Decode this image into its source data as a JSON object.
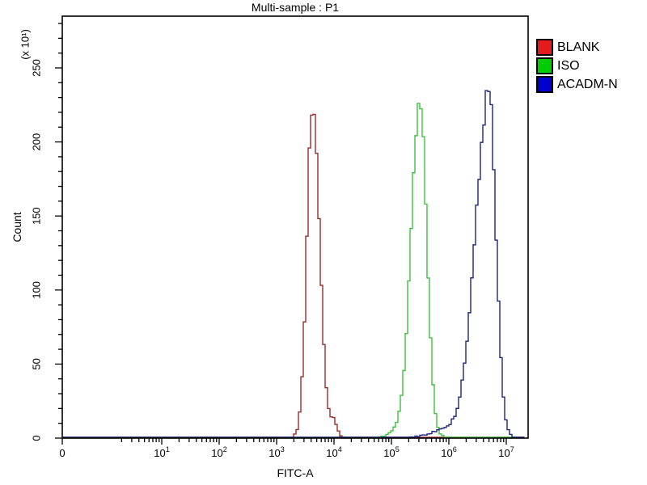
{
  "chart_data": {
    "type": "line",
    "subtype": "flow-cytometry-histogram-overlay",
    "title": "Multi-sample : P1",
    "xlabel": "FITC-A",
    "ylabel": "Count",
    "y_unit_multiplier": "(x 10¹)",
    "x_scale": "biexponential-log",
    "x_ticks": [
      {
        "label": "0",
        "type": "plain",
        "value": 0
      },
      {
        "base": "10",
        "exp": "1",
        "type": "power",
        "value": 10
      },
      {
        "base": "10",
        "exp": "2",
        "type": "power",
        "value": 100
      },
      {
        "base": "10",
        "exp": "3",
        "type": "power",
        "value": 1000
      },
      {
        "base": "10",
        "exp": "4",
        "type": "power",
        "value": 10000
      },
      {
        "base": "10",
        "exp": "5",
        "type": "power",
        "value": 100000
      },
      {
        "base": "10",
        "exp": "6",
        "type": "power",
        "value": 1000000
      },
      {
        "base": "10",
        "exp": "7",
        "type": "power",
        "value": 10000000
      }
    ],
    "y_major_ticks": [
      0,
      50,
      100,
      150,
      200,
      250
    ],
    "y_minor_step": 10,
    "ylim": [
      0,
      285
    ],
    "grid": false,
    "legend_position": "outside-top-right",
    "series": [
      {
        "name": "BLANK",
        "curve_color": "#9b2c2c",
        "legend_color": "#e51a1a",
        "peak_x_value": 4100,
        "peak_log10": 3.61,
        "peak_count": 228,
        "sigma_left_decades": 0.1,
        "sigma_right_decades": 0.12,
        "bumps": [
          {
            "log10": 3.97,
            "height": 10,
            "sigma": 0.06
          }
        ],
        "profile_points_log10_count": [
          [
            3.2,
            0
          ],
          [
            3.35,
            8
          ],
          [
            3.45,
            55
          ],
          [
            3.55,
            170
          ],
          [
            3.61,
            228
          ],
          [
            3.7,
            140
          ],
          [
            3.8,
            40
          ],
          [
            3.95,
            12
          ],
          [
            4.1,
            2
          ],
          [
            4.3,
            0
          ]
        ]
      },
      {
        "name": "ISO",
        "curve_color": "#3dc23d",
        "legend_color": "#00cc00",
        "peak_x_value": 300000,
        "peak_log10": 5.48,
        "peak_count": 230,
        "sigma_left_decades": 0.155,
        "sigma_right_decades": 0.115,
        "bumps": [
          {
            "log10": 5.1,
            "height": 4,
            "sigma": 0.15
          }
        ],
        "profile_points_log10_count": [
          [
            4.9,
            0
          ],
          [
            5.1,
            8
          ],
          [
            5.25,
            45
          ],
          [
            5.35,
            115
          ],
          [
            5.48,
            230
          ],
          [
            5.6,
            120
          ],
          [
            5.7,
            35
          ],
          [
            5.85,
            5
          ],
          [
            6.0,
            0
          ]
        ]
      },
      {
        "name": "ACADM-N",
        "curve_color": "#20247e",
        "legend_color": "#0000cc",
        "peak_x_value": 4800000,
        "peak_log10": 6.68,
        "peak_count": 232,
        "sigma_left_decades": 0.24,
        "sigma_right_decades": 0.12,
        "bumps": [
          {
            "log10": 5.95,
            "height": 5,
            "sigma": 0.28
          }
        ],
        "profile_points_log10_count": [
          [
            5.5,
            2
          ],
          [
            5.9,
            6
          ],
          [
            6.1,
            25
          ],
          [
            6.3,
            75
          ],
          [
            6.5,
            160
          ],
          [
            6.68,
            232
          ],
          [
            6.8,
            130
          ],
          [
            6.9,
            30
          ],
          [
            7.05,
            3
          ],
          [
            7.15,
            0
          ]
        ]
      }
    ]
  }
}
